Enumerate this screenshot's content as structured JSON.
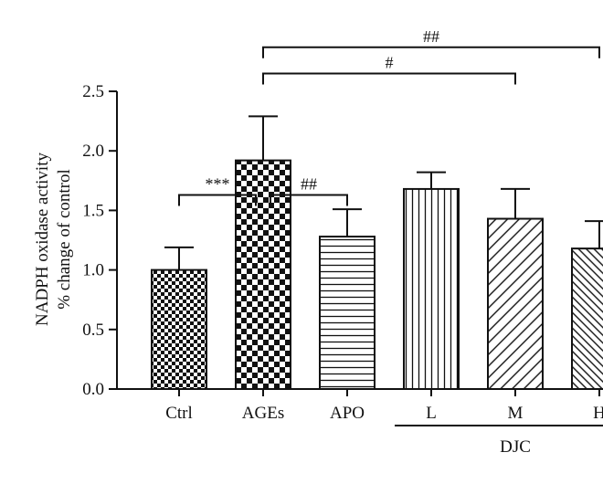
{
  "chart_data": {
    "type": "bar",
    "title": "",
    "ylabel_lines": [
      "NADPH oxidase activity",
      "% change of control"
    ],
    "xlabel": "",
    "ylim": [
      0,
      2.5
    ],
    "yticks": [
      "0.0",
      "0.5",
      "1.0",
      "1.5",
      "2.0",
      "2.5"
    ],
    "categories": [
      "Ctrl",
      "AGEs",
      "APO",
      "L",
      "M",
      "H"
    ],
    "values": [
      1.0,
      1.92,
      1.28,
      1.68,
      1.43,
      1.18
    ],
    "errors": [
      0.19,
      0.37,
      0.23,
      0.14,
      0.25,
      0.23
    ],
    "patterns": [
      "checker-small",
      "checker-large",
      "horizontal-lines",
      "vertical-lines",
      "diagonal-wide",
      "diagonal-dense"
    ],
    "group_label": {
      "text": "DJC",
      "categories": [
        "L",
        "M",
        "H"
      ]
    },
    "significance": [
      {
        "from": "Ctrl",
        "to": "AGEs",
        "label": "***",
        "level": 1.63
      },
      {
        "from": "AGEs",
        "to": "APO",
        "label": "##",
        "level": 1.63
      },
      {
        "from": "AGEs",
        "to": "M",
        "label": "#",
        "level": 2.65
      },
      {
        "from": "AGEs",
        "to": "H",
        "label": "##",
        "level": 2.87
      }
    ]
  }
}
